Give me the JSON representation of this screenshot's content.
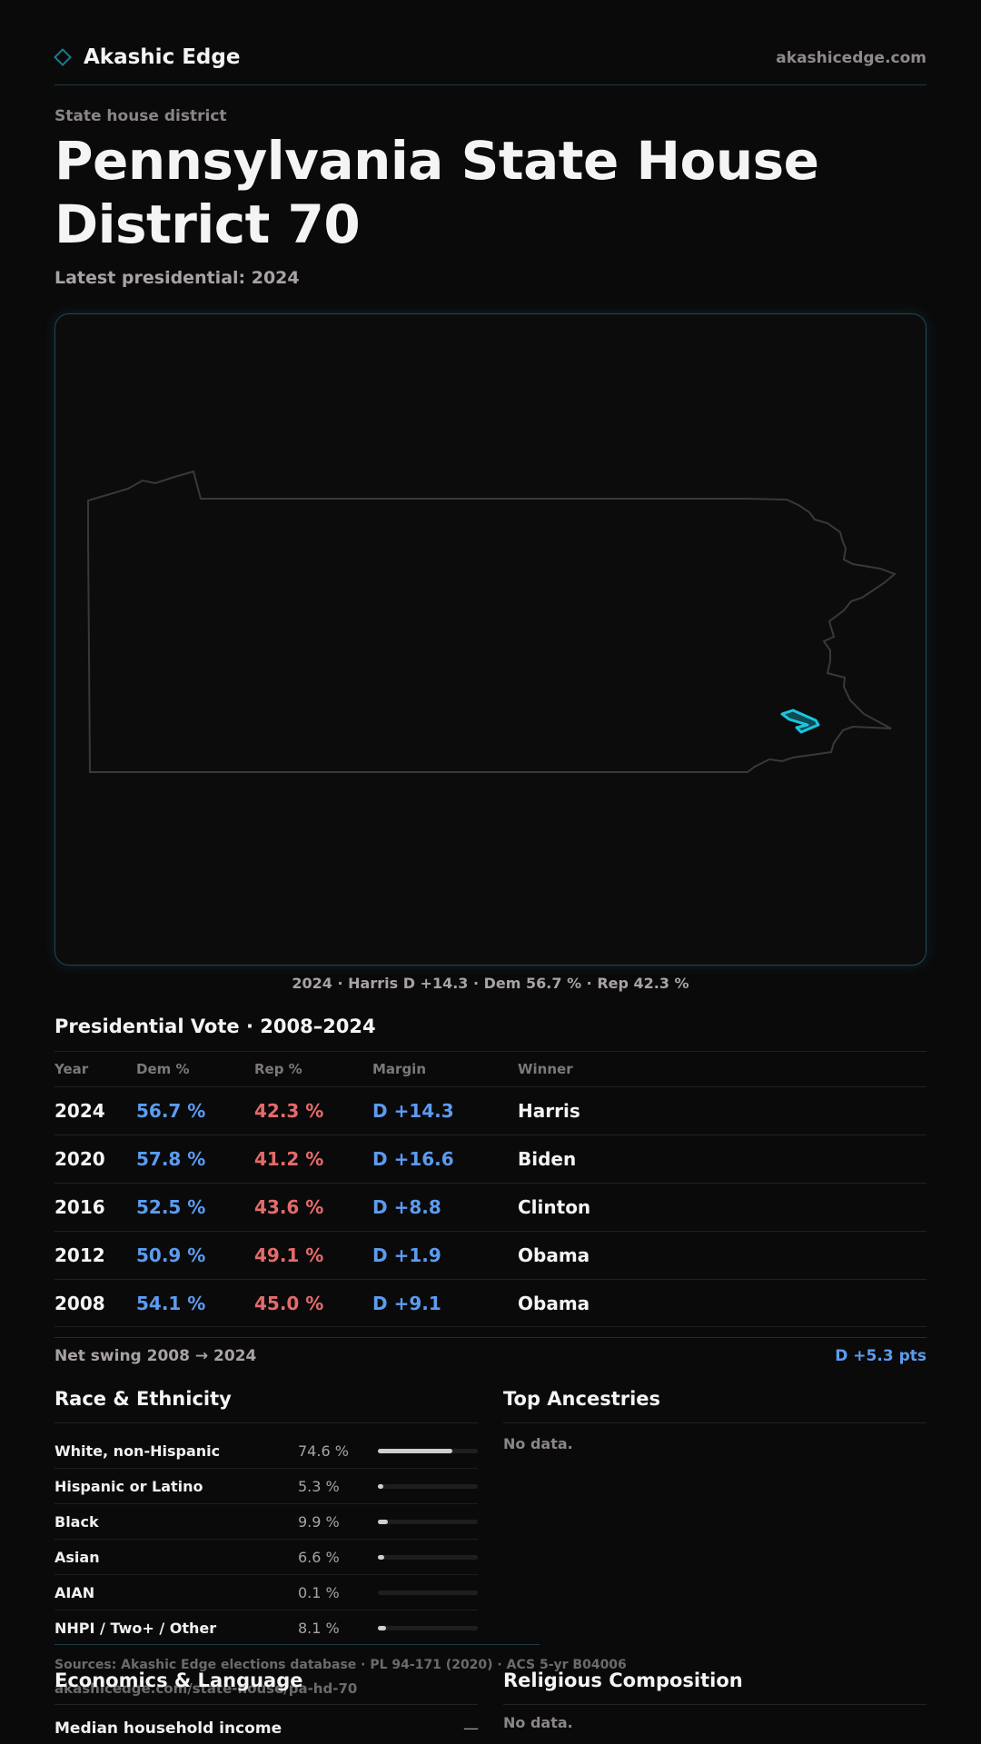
{
  "header": {
    "brand": "Akashic Edge",
    "domain": "akashicedge.com",
    "brand_icon": "diamond-icon"
  },
  "page": {
    "eyebrow": "State house district",
    "title": "Pennsylvania State House District 70",
    "subtitle": "Latest presidential: 2024"
  },
  "map": {
    "caption": "2024 · Harris D +14.3 · Dem 56.7 % · Rep 42.3 %",
    "highlight_color": "#19c6dc"
  },
  "presidential": {
    "title": "Presidential Vote · 2008–2024",
    "columns": [
      "Year",
      "Dem %",
      "Rep %",
      "Margin",
      "Winner"
    ],
    "rows": [
      {
        "year": "2024",
        "dem": "56.7 %",
        "rep": "42.3 %",
        "margin": "D +14.3",
        "winner": "Harris"
      },
      {
        "year": "2020",
        "dem": "57.8 %",
        "rep": "41.2 %",
        "margin": "D +16.6",
        "winner": "Biden"
      },
      {
        "year": "2016",
        "dem": "52.5 %",
        "rep": "43.6 %",
        "margin": "D +8.8",
        "winner": "Clinton"
      },
      {
        "year": "2012",
        "dem": "50.9 %",
        "rep": "49.1 %",
        "margin": "D +1.9",
        "winner": "Obama"
      },
      {
        "year": "2008",
        "dem": "54.1 %",
        "rep": "45.0 %",
        "margin": "D +9.1",
        "winner": "Obama"
      }
    ],
    "swing_label": "Net swing 2008 → 2024",
    "swing_value": "D +5.3 pts"
  },
  "race": {
    "title": "Race & Ethnicity",
    "rows": [
      {
        "label": "White, non-Hispanic",
        "pct": "74.6 %",
        "value": 74.6
      },
      {
        "label": "Hispanic or Latino",
        "pct": "5.3 %",
        "value": 5.3
      },
      {
        "label": "Black",
        "pct": "9.9 %",
        "value": 9.9
      },
      {
        "label": "Asian",
        "pct": "6.6 %",
        "value": 6.6
      },
      {
        "label": "AIAN",
        "pct": "0.1 %",
        "value": 0.1
      },
      {
        "label": "NHPI / Two+ / Other",
        "pct": "8.1 %",
        "value": 8.1
      }
    ]
  },
  "ancestries": {
    "title": "Top Ancestries",
    "empty": "No data."
  },
  "footer": {
    "sources": "Sources: Akashic Edge elections database · PL 94-171 (2020) · ACS 5-yr B04006",
    "url": "akashicedge.com/state-house/pa-hd-70"
  },
  "economics": {
    "title": "Economics & Language",
    "median_label": "Median household income",
    "median_value": "—"
  },
  "religion": {
    "title": "Religious Composition",
    "empty": "No data."
  },
  "colors": {
    "dem": "#5b9cf0",
    "rep": "#e46b6b",
    "accent": "#19c6dc"
  }
}
